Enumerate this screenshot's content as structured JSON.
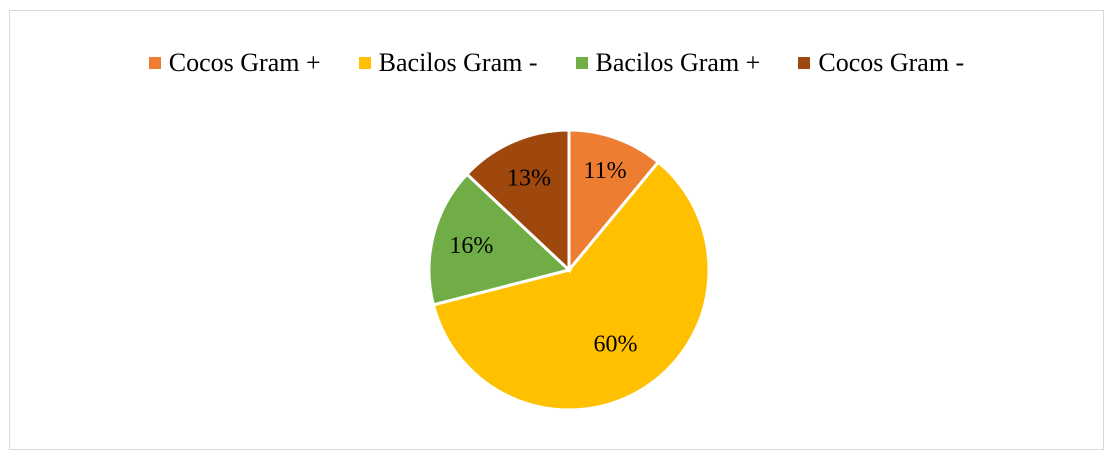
{
  "chart_data": {
    "type": "pie",
    "categories": [
      "Cocos Gram +",
      "Bacilos Gram -",
      "Bacilos Gram +",
      "Cocos Gram -"
    ],
    "values": [
      11,
      60,
      16,
      13
    ],
    "labels": [
      "11%",
      "60%",
      "16%",
      "13%"
    ],
    "colors": [
      "#ED7D31",
      "#FFC000",
      "#70AD47",
      "#9E480E"
    ],
    "legend_position": "top"
  }
}
